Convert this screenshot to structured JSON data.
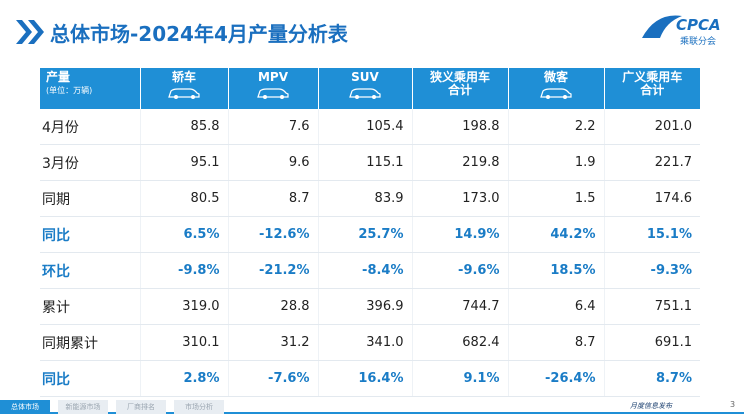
{
  "header": {
    "title": "总体市场-2024年4月产量分析表",
    "logo": "CPCA",
    "logo_sub": "乘联分会"
  },
  "table": {
    "columns": [
      {
        "lines": [
          "产量"
        ],
        "unit": "(单位：万辆)"
      },
      {
        "lines": [
          "轿车"
        ]
      },
      {
        "lines": [
          "MPV"
        ]
      },
      {
        "lines": [
          "SUV"
        ]
      },
      {
        "lines": [
          "狭义乘用车",
          "合计"
        ]
      },
      {
        "lines": [
          "微客"
        ]
      },
      {
        "lines": [
          "广义乘用车",
          "合计"
        ]
      }
    ],
    "rows": [
      {
        "cells": [
          "4月份",
          "85.8",
          "7.6",
          "105.4",
          "198.8",
          "2.2",
          "201.0"
        ],
        "color": "#222222"
      },
      {
        "cells": [
          "3月份",
          "95.1",
          "9.6",
          "115.1",
          "219.8",
          "1.9",
          "221.7"
        ],
        "color": "#222222"
      },
      {
        "cells": [
          "同期",
          "80.5",
          "8.7",
          "83.9",
          "173.0",
          "1.5",
          "174.6"
        ],
        "color": "#222222"
      },
      {
        "cells": [
          "同比",
          "6.5%",
          "-12.6%",
          "25.7%",
          "14.9%",
          "44.2%",
          "15.1%"
        ],
        "color": "#1a7cc6"
      },
      {
        "cells": [
          "环比",
          "-9.8%",
          "-21.2%",
          "-8.4%",
          "-9.6%",
          "18.5%",
          "-9.3%"
        ],
        "color": "#1a7cc6"
      },
      {
        "cells": [
          "累计",
          "319.0",
          "28.8",
          "396.9",
          "744.7",
          "6.4",
          "751.1"
        ],
        "color": "#222222"
      },
      {
        "cells": [
          "同期累计",
          "310.1",
          "31.2",
          "341.0",
          "682.4",
          "8.7",
          "691.1"
        ],
        "color": "#222222"
      },
      {
        "cells": [
          "同比",
          "2.8%",
          "-7.6%",
          "16.4%",
          "9.1%",
          "-26.4%",
          "8.7%"
        ],
        "color": "#1a7cc6"
      }
    ]
  },
  "footer": {
    "tabs": [
      "总体市场",
      "新能源市场",
      "厂商排名",
      "市场分析"
    ],
    "note": "月度信息发布",
    "page": "3"
  }
}
